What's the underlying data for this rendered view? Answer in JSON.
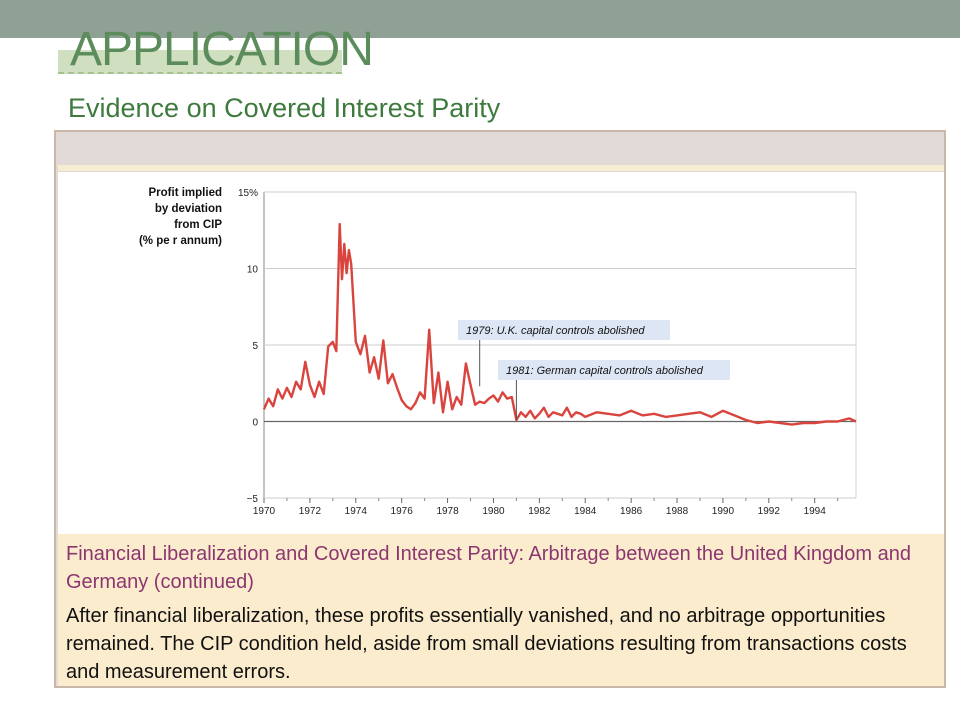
{
  "slide": {
    "title": "APPLICATION",
    "subtitle": "Evidence on Covered Interest Parity"
  },
  "caption": {
    "title": "Financial Liberalization and Covered Interest Parity: Arbitrage between the United Kingdom and Germany (continued)",
    "body": "After financial liberalization, these profits essentially vanished, and no arbitrage opportunities remained. The CIP condition held, aside from small deviations resulting from transactions costs and measurement errors."
  },
  "colors": {
    "series": "#d9453e",
    "annotation_bg": "#dde6f4",
    "grid": "#cccccc"
  },
  "chart_data": {
    "type": "line",
    "title": "",
    "ylabel_lines": [
      "Profit implied",
      "by deviation",
      "from CIP",
      "(% pe r annum)"
    ],
    "xlabel": "",
    "xlim": [
      1970,
      1995.8
    ],
    "ylim": [
      -5,
      15
    ],
    "y_ticks": [
      {
        "value": 15,
        "label": "15%"
      },
      {
        "value": 10,
        "label": "10"
      },
      {
        "value": 5,
        "label": "5"
      },
      {
        "value": 0,
        "label": "0"
      },
      {
        "value": -5,
        "label": "−5"
      }
    ],
    "x_ticks": [
      {
        "value": 1970,
        "label": "1970"
      },
      {
        "value": 1972,
        "label": "1972"
      },
      {
        "value": 1974,
        "label": "1974"
      },
      {
        "value": 1976,
        "label": "1976"
      },
      {
        "value": 1978,
        "label": "1978"
      },
      {
        "value": 1980,
        "label": "1980"
      },
      {
        "value": 1982,
        "label": "1982"
      },
      {
        "value": 1984,
        "label": "1984"
      },
      {
        "value": 1986,
        "label": "1986"
      },
      {
        "value": 1988,
        "label": "1988"
      },
      {
        "value": 1990,
        "label": "1990"
      },
      {
        "value": 1992,
        "label": "1992"
      },
      {
        "value": 1994,
        "label": "1994"
      }
    ],
    "grid": true,
    "annotations": [
      {
        "text": "1979: U.K. capital controls abolished",
        "x": 1979.4,
        "y": 2.3
      },
      {
        "text": "1981: German capital controls abolished",
        "x": 1981.0,
        "y": 0.1
      }
    ],
    "series": [
      {
        "x": [
          1970.0,
          1970.2,
          1970.4,
          1970.6,
          1970.8,
          1971.0,
          1971.2,
          1971.4,
          1971.6,
          1971.8,
          1972.0,
          1972.2,
          1972.4,
          1972.6,
          1972.8,
          1973.0,
          1973.15,
          1973.2,
          1973.3,
          1973.4,
          1973.5,
          1973.6,
          1973.7,
          1973.8,
          1974.0,
          1974.2,
          1974.4,
          1974.6,
          1974.8,
          1975.0,
          1975.2,
          1975.4,
          1975.6,
          1975.8,
          1976.0,
          1976.2,
          1976.4,
          1976.6,
          1976.8,
          1977.0,
          1977.2,
          1977.4,
          1977.6,
          1977.8,
          1978.0,
          1978.2,
          1978.4,
          1978.6,
          1978.8,
          1979.0,
          1979.2,
          1979.4,
          1979.6,
          1979.8,
          1980.0,
          1980.2,
          1980.4,
          1980.6,
          1980.8,
          1981.0,
          1981.2,
          1981.4,
          1981.6,
          1981.8,
          1982.0,
          1982.2,
          1982.4,
          1982.6,
          1982.8,
          1983.0,
          1983.2,
          1983.4,
          1983.6,
          1983.8,
          1984.0,
          1984.5,
          1985.0,
          1985.5,
          1986.0,
          1986.5,
          1987.0,
          1987.5,
          1988.0,
          1988.5,
          1989.0,
          1989.5,
          1990.0,
          1990.5,
          1991.0,
          1991.5,
          1992.0,
          1992.5,
          1993.0,
          1993.5,
          1994.0,
          1994.5,
          1995.0,
          1995.5,
          1995.8
        ],
        "values": [
          0.8,
          1.5,
          1.0,
          2.1,
          1.5,
          2.2,
          1.6,
          2.6,
          2.1,
          3.9,
          2.4,
          1.6,
          2.6,
          1.8,
          4.9,
          5.2,
          4.6,
          7.3,
          12.9,
          9.3,
          11.6,
          9.7,
          11.2,
          10.3,
          5.2,
          4.4,
          5.6,
          3.2,
          4.2,
          2.8,
          5.3,
          2.5,
          3.1,
          2.2,
          1.4,
          1.0,
          0.8,
          1.2,
          1.9,
          1.5,
          6.0,
          1.2,
          3.2,
          0.6,
          2.6,
          0.8,
          1.6,
          1.1,
          3.8,
          2.4,
          1.1,
          1.3,
          1.2,
          1.5,
          1.7,
          1.3,
          1.9,
          1.5,
          1.6,
          0.1,
          0.6,
          0.3,
          0.7,
          0.2,
          0.5,
          0.9,
          0.3,
          0.6,
          0.5,
          0.4,
          0.9,
          0.3,
          0.6,
          0.5,
          0.3,
          0.6,
          0.5,
          0.4,
          0.7,
          0.4,
          0.5,
          0.3,
          0.4,
          0.5,
          0.6,
          0.3,
          0.7,
          0.4,
          0.1,
          -0.1,
          0.0,
          -0.1,
          -0.2,
          -0.1,
          -0.1,
          0.0,
          0.0,
          0.2,
          0.0
        ]
      }
    ]
  }
}
